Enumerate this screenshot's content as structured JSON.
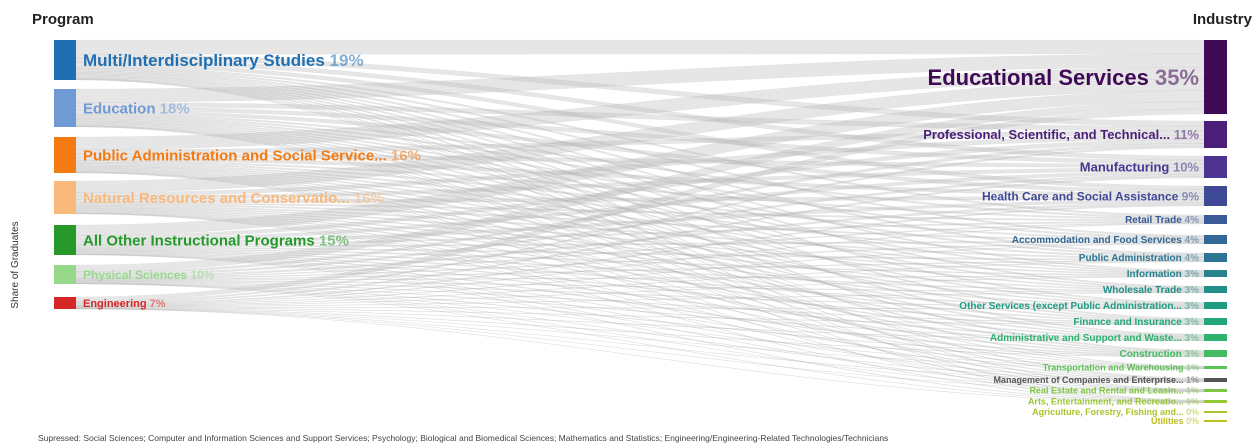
{
  "headers": {
    "left": "Program",
    "right": "Industry",
    "side": "Share of Graduates"
  },
  "footnote": "Supressed: Social Sciences; Computer and Information Sciences and Support Services; Psychology; Biological and Biomedical Sciences; Mathematics and Statistics; Engineering/Engineering-Related Technologies/Technicians",
  "programs": [
    {
      "name": "Multi/Interdisciplinary Studies",
      "pct": "19%",
      "value": 19,
      "color": "#1f6fb2"
    },
    {
      "name": "Education",
      "pct": "18%",
      "value": 18,
      "color": "#6f9ad4"
    },
    {
      "name": "Public Administration and Social Service...",
      "pct": "16%",
      "value": 16,
      "color": "#f47a12"
    },
    {
      "name": "Natural Resources and Conservatio...",
      "pct": "16%",
      "value": 16,
      "color": "#f9b97a"
    },
    {
      "name": "All Other Instructional Programs",
      "pct": "15%",
      "value": 15,
      "color": "#259a2b"
    },
    {
      "name": "Physical Sciences",
      "pct": "10%",
      "value": 10,
      "color": "#96d98a"
    },
    {
      "name": "Engineering",
      "pct": "7%",
      "value": 7,
      "color": "#d62728"
    }
  ],
  "industries": [
    {
      "name": "Educational Services",
      "pct": "35%",
      "value": 35,
      "color": "#3f0a55"
    },
    {
      "name": "Professional, Scientific, and Technical...",
      "pct": "11%",
      "value": 11,
      "color": "#4b1f78"
    },
    {
      "name": "Manufacturing",
      "pct": "10%",
      "value": 10,
      "color": "#4b3590"
    },
    {
      "name": "Health Care and Social Assistance",
      "pct": "9%",
      "value": 9,
      "color": "#3f4a96"
    },
    {
      "name": "Retail Trade",
      "pct": "4%",
      "value": 4,
      "color": "#3a5a98"
    },
    {
      "name": "Accommodation and Food Services",
      "pct": "4%",
      "value": 4,
      "color": "#336896"
    },
    {
      "name": "Public Administration",
      "pct": "4%",
      "value": 4,
      "color": "#2c7593"
    },
    {
      "name": "Information",
      "pct": "3%",
      "value": 3,
      "color": "#27838e"
    },
    {
      "name": "Wholesale Trade",
      "pct": "3%",
      "value": 3,
      "color": "#219089"
    },
    {
      "name": "Other Services (except Public Administration...",
      "pct": "3%",
      "value": 3,
      "color": "#1f9c82"
    },
    {
      "name": "Finance and Insurance",
      "pct": "3%",
      "value": 3,
      "color": "#23a77a"
    },
    {
      "name": "Administrative and Support and Waste...",
      "pct": "3%",
      "value": 3,
      "color": "#2fb170"
    },
    {
      "name": "Construction",
      "pct": "3%",
      "value": 3,
      "color": "#44ba63"
    },
    {
      "name": "Transportation and Warehousing",
      "pct": "1%",
      "value": 1,
      "color": "#5ec155"
    },
    {
      "name": "Management of Companies and Enterprise...",
      "pct": "1%",
      "value": 1,
      "color": "#555555"
    },
    {
      "name": "Real Estate and Rental and Leasin...",
      "pct": "1%",
      "value": 1,
      "color": "#7fc544"
    },
    {
      "name": "Arts, Entertainment, and Recreatio...",
      "pct": "1%",
      "value": 1,
      "color": "#98c735"
    },
    {
      "name": "Agriculture, Forestry, Fishing and...",
      "pct": "0%",
      "value": 0,
      "color": "#acc42a"
    },
    {
      "name": "Utilities",
      "pct": "0%",
      "value": 0,
      "color": "#bdbd22"
    }
  ]
}
